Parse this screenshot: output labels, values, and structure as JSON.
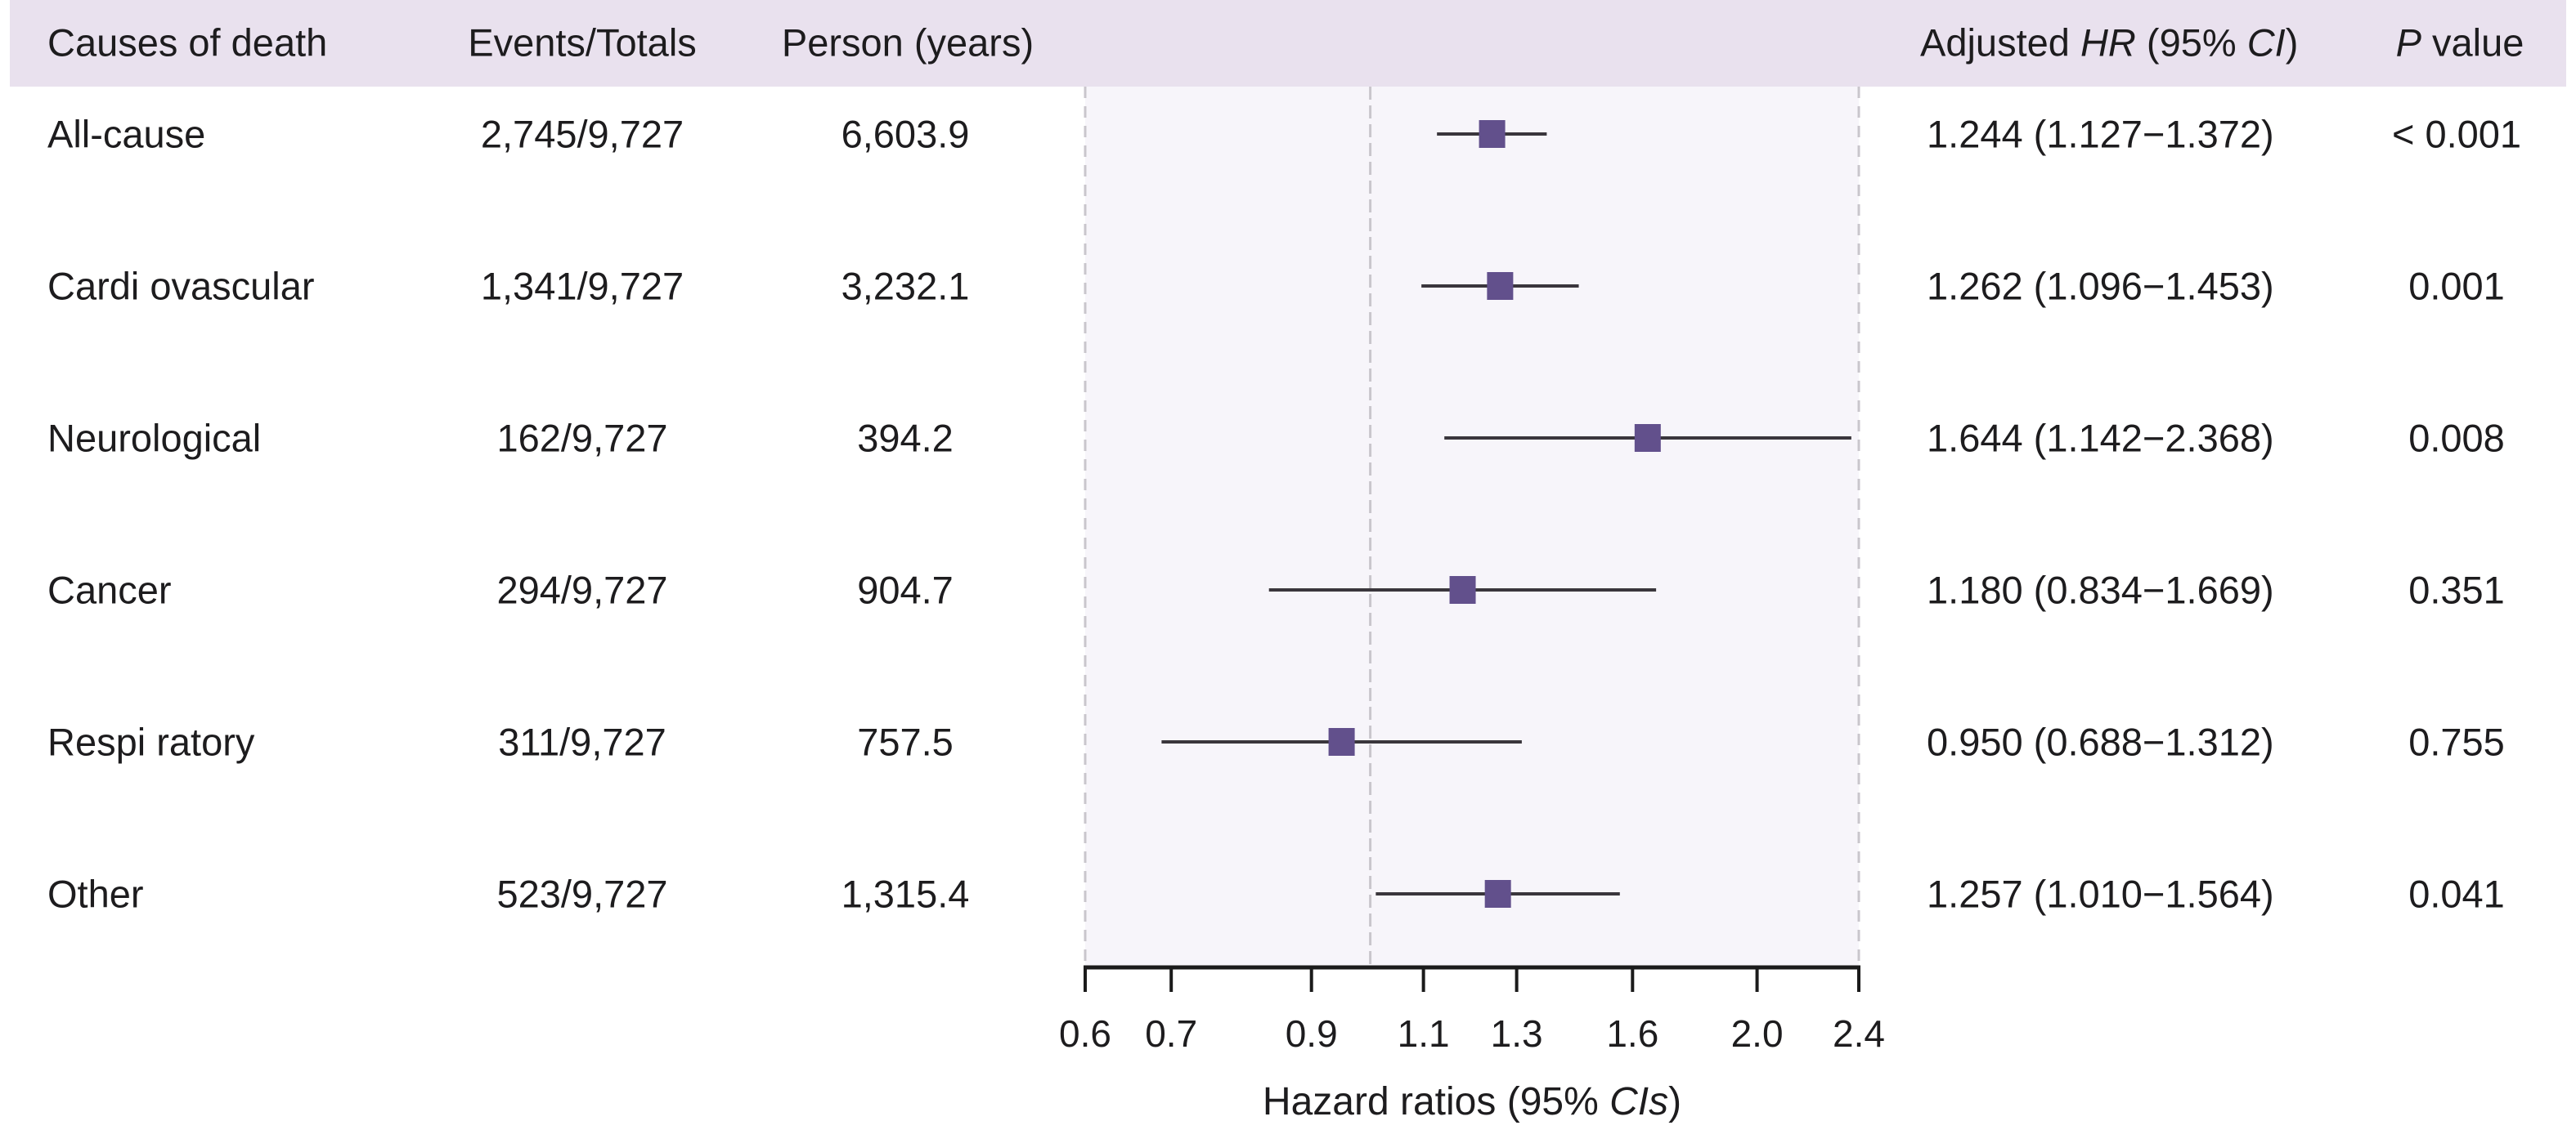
{
  "colors": {
    "header_bg": "#e9e1ee",
    "plot_bg": "#f7f5fa",
    "marker": "#62508c",
    "ci_line": "#3a363c",
    "dashed_border": "#c9c6cc",
    "reference_line": "#c9c6cc",
    "axis": "#1b1b1b",
    "text": "#1d1c1e"
  },
  "headers": {
    "causes_of_death": "Causes of death",
    "events_totals": "Events/Totals",
    "person_years": "Person (years)",
    "adjusted_hr_prefix": "Adjusted ",
    "adjusted_hr_italic1": "HR",
    "adjusted_hr_mid": " (95% ",
    "adjusted_hr_italic2": "CI",
    "adjusted_hr_suffix": ")",
    "p_value_italic": "P",
    "p_value_suffix": " value"
  },
  "chart_data": {
    "type": "forest",
    "x_scale": "log",
    "x_range": [
      0.6,
      2.4
    ],
    "x_ticks": [
      0.6,
      0.7,
      0.9,
      1.1,
      1.3,
      1.6,
      2.0,
      2.4
    ],
    "x_tick_labels": [
      "0.6",
      "0.7",
      "0.9",
      "1.1",
      "1.3",
      "1.6",
      "2.0",
      "2.4"
    ],
    "reference_line": 1.0,
    "xlabel_prefix": "Hazard ratios (95% ",
    "xlabel_italic": "CIs",
    "xlabel_suffix": ")",
    "grid": false,
    "rows": [
      {
        "cause": "All-cause",
        "events_totals": "2,745/9,727",
        "person_years": "6,603.9",
        "hr": 1.244,
        "ci_low": 1.127,
        "ci_high": 1.372,
        "hr_ci": "1.244 (1.127−1.372)",
        "p_value": "< 0.001"
      },
      {
        "cause": "Cardi ovascular",
        "events_totals": "1,341/9,727",
        "person_years": "3,232.1",
        "hr": 1.262,
        "ci_low": 1.096,
        "ci_high": 1.453,
        "hr_ci": "1.262 (1.096−1.453)",
        "p_value": "0.001"
      },
      {
        "cause": "Neurological",
        "events_totals": "162/9,727",
        "person_years": "394.2",
        "hr": 1.644,
        "ci_low": 1.142,
        "ci_high": 2.368,
        "hr_ci": "1.644 (1.142−2.368)",
        "p_value": "0.008"
      },
      {
        "cause": "Cancer",
        "events_totals": "294/9,727",
        "person_years": "904.7",
        "hr": 1.18,
        "ci_low": 0.834,
        "ci_high": 1.669,
        "hr_ci": "1.180 (0.834−1.669)",
        "p_value": "0.351"
      },
      {
        "cause": "Respi ratory",
        "events_totals": "311/9,727",
        "person_years": "757.5",
        "hr": 0.95,
        "ci_low": 0.688,
        "ci_high": 1.312,
        "hr_ci": "0.950 (0.688−1.312)",
        "p_value": "0.755"
      },
      {
        "cause": "Other",
        "events_totals": "523/9,727",
        "person_years": "1,315.4",
        "hr": 1.257,
        "ci_low": 1.01,
        "ci_high": 1.564,
        "hr_ci": "1.257 (1.010−1.564)",
        "p_value": "0.041"
      }
    ]
  }
}
